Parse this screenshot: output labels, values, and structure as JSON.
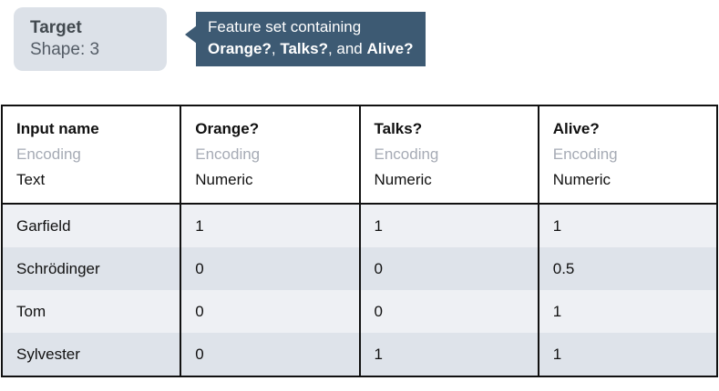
{
  "target_badge": {
    "title": "Target",
    "subtitle": "Shape: 3"
  },
  "tooltip": {
    "intro": "Feature set containing",
    "feature1": "Orange?",
    "sep1": ", ",
    "feature2": "Talks?",
    "sep2": ", and ",
    "feature3": "Alive?"
  },
  "table": {
    "columns": [
      {
        "name": "Input name",
        "encoding_label": "Encoding",
        "encoding": "Text"
      },
      {
        "name": "Orange?",
        "encoding_label": "Encoding",
        "encoding": "Numeric"
      },
      {
        "name": "Talks?",
        "encoding_label": "Encoding",
        "encoding": "Numeric"
      },
      {
        "name": "Alive?",
        "encoding_label": "Encoding",
        "encoding": "Numeric"
      }
    ],
    "rows": [
      {
        "name": "Garfield",
        "values": [
          "1",
          "1",
          "1"
        ]
      },
      {
        "name": "Schrödinger",
        "values": [
          "0",
          "0",
          "0.5"
        ]
      },
      {
        "name": "Tom",
        "values": [
          "0",
          "0",
          "1"
        ]
      },
      {
        "name": "Sylvester",
        "values": [
          "0",
          "1",
          "1"
        ]
      }
    ]
  },
  "colors": {
    "tooltip-bg": "#3d5a73",
    "tooltip-text": "#ffffff",
    "badge-bg": "#dce1e8",
    "badge-title-text": "#42494f",
    "badge-subtitle-text": "#545c66",
    "row-light": "#eef0f4",
    "row-dark": "#dee3ea",
    "encoding-label-text": "#a6abb5",
    "table-border": "#111111",
    "table-text": "#111111"
  }
}
